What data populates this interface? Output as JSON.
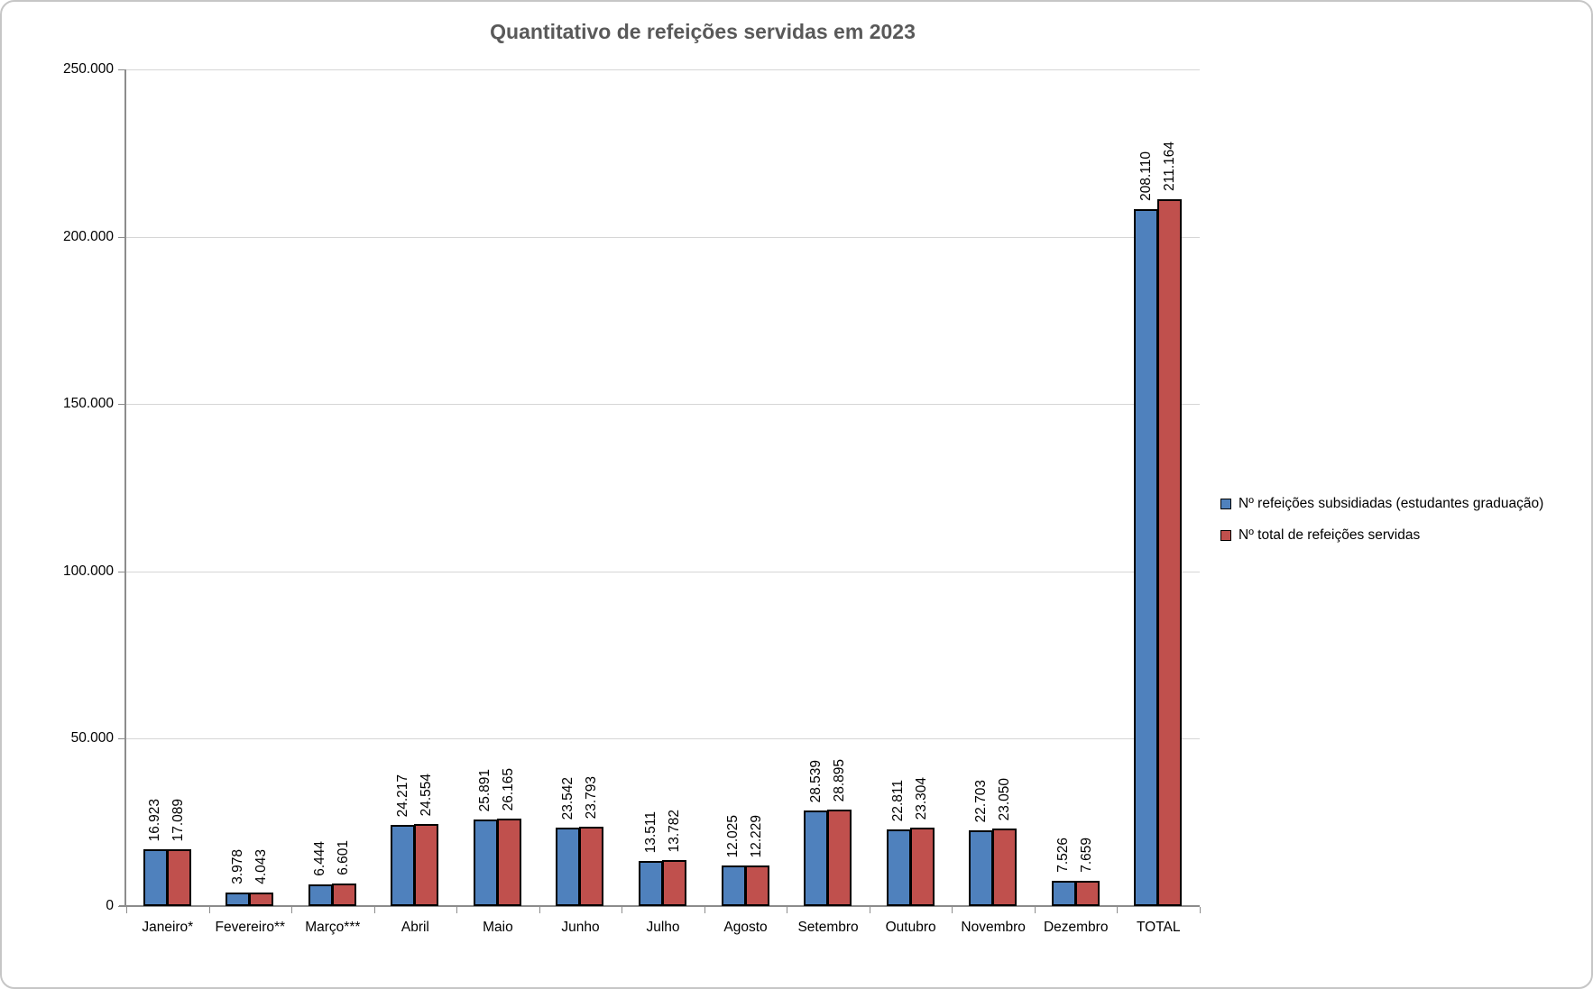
{
  "chart_data": {
    "type": "bar",
    "title": "Quantitativo de refeições servidas em 2023",
    "categories": [
      "Janeiro*",
      "Fevereiro**",
      "Março***",
      "Abril",
      "Maio",
      "Junho",
      "Julho",
      "Agosto",
      "Setembro",
      "Outubro",
      "Novembro",
      "Dezembro",
      "TOTAL"
    ],
    "series": [
      {
        "name": "Nº refeições subsidiadas (estudantes graduação)",
        "color": "#4F81BD",
        "values": [
          16923,
          3978,
          6444,
          24217,
          25891,
          23542,
          13511,
          12025,
          28539,
          22811,
          22703,
          7526,
          208110
        ],
        "labels": [
          "16.923",
          "3.978",
          "6.444",
          "24.217",
          "25.891",
          "23.542",
          "13.511",
          "12.025",
          "28.539",
          "22.811",
          "22.703",
          "7.526",
          "208.110"
        ]
      },
      {
        "name": "Nº total de refeições servidas",
        "color": "#C0504D",
        "values": [
          17089,
          4043,
          6601,
          24554,
          26165,
          23793,
          13782,
          12229,
          28895,
          23304,
          23050,
          7659,
          211164
        ],
        "labels": [
          "17.089",
          "4.043",
          "6.601",
          "24.554",
          "26.165",
          "23.793",
          "13.782",
          "12.229",
          "28.895",
          "23.304",
          "23.050",
          "7.659",
          "211.164"
        ]
      }
    ],
    "y_axis": {
      "min": 0,
      "max": 250000,
      "step": 50000,
      "tick_labels": [
        "0",
        "50.000",
        "100.000",
        "150.000",
        "200.000",
        "250.000"
      ]
    },
    "xlabel": "",
    "ylabel": "",
    "grid": true,
    "legend_position": "right",
    "data_label_rotation": -90
  },
  "colors": {
    "series_blue": "#4F81BD",
    "series_red": "#C0504D",
    "bar_border": "#000000",
    "grid": "#D6D6D6",
    "axis": "#8C8C8C",
    "title": "#595959",
    "frame_border": "#C6C6C6",
    "background": "#FFFFFF"
  }
}
